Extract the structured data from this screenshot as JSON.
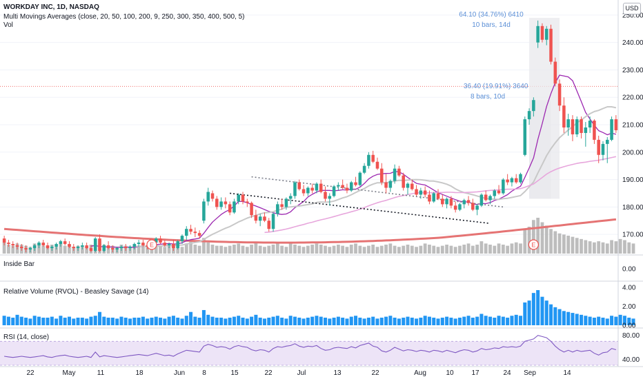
{
  "header": {
    "title": "WORKDAY INC, 1D, NASDAQ",
    "ma_legend": "Multi Movings Averages (close, 20, 50, 100, 200, 9, 250, 300, 350, 400, 500, 5)",
    "vol_legend": "Vol",
    "currency": "USD"
  },
  "panes": {
    "inside_bar": "Inside Bar",
    "rvol": "Relative Volume (RVOL) - Beasley Savage (14)",
    "rsi": "RSI (14, close)"
  },
  "annotations": {
    "range1_line1": "64.10 (34.76%) 6410",
    "range1_line2": "10 bars, 14d",
    "range2_line1": "36.40 (19.91%) 3640",
    "range2_line2": "8 bars, 10d",
    "earnings_marker": "E"
  },
  "colors": {
    "up": "#26a69a",
    "down": "#ef5350",
    "ma_gray": "#c8c8c8",
    "ma_purple": "#9c27b0",
    "ma_pink": "#e7a6dc",
    "ma_red": "#e57373",
    "volume": "#b2b2b2",
    "rvol": "#2196f3",
    "rsi": "#7e57c2"
  },
  "chart_data": {
    "type": "candlestick",
    "price_axis": {
      "ticks": [
        170,
        180,
        190,
        200,
        210,
        220,
        230,
        240,
        250
      ],
      "ylim": [
        163,
        255
      ]
    },
    "x_ticks": [
      "22",
      "May",
      "11",
      "18",
      "Jun",
      "8",
      "15",
      "22",
      "Jul",
      "13",
      "22",
      "Aug",
      "10",
      "17",
      "24",
      "Sep",
      "14"
    ],
    "candles": [
      [
        168.5,
        169.5,
        166.0,
        167.0
      ],
      [
        167.0,
        168.0,
        165.5,
        166.5
      ],
      [
        166.5,
        167.5,
        165.0,
        166.0
      ],
      [
        166.0,
        167.0,
        164.5,
        165.5
      ],
      [
        165.5,
        166.5,
        164.0,
        165.0
      ],
      [
        165.0,
        166.0,
        163.5,
        164.5
      ],
      [
        164.5,
        165.5,
        163.5,
        165.0
      ],
      [
        165.0,
        166.5,
        164.0,
        166.0
      ],
      [
        166.0,
        167.5,
        165.0,
        167.0
      ],
      [
        167.0,
        168.0,
        165.5,
        166.0
      ],
      [
        166.0,
        167.0,
        164.5,
        165.0
      ],
      [
        165.0,
        166.0,
        164.0,
        165.5
      ],
      [
        165.5,
        167.0,
        164.5,
        166.5
      ],
      [
        166.5,
        168.0,
        165.5,
        167.5
      ],
      [
        167.5,
        168.5,
        166.0,
        166.5
      ],
      [
        166.5,
        167.5,
        165.0,
        165.5
      ],
      [
        165.5,
        166.5,
        164.0,
        165.0
      ],
      [
        165.0,
        166.0,
        164.0,
        165.5
      ],
      [
        165.5,
        167.0,
        164.5,
        166.0
      ],
      [
        166.0,
        167.0,
        164.5,
        165.0
      ],
      [
        165.0,
        166.0,
        163.5,
        164.0
      ],
      [
        164.0,
        169.0,
        163.5,
        168.5
      ],
      [
        168.5,
        170.0,
        163.5,
        164.0
      ],
      [
        164.0,
        166.5,
        163.5,
        166.0
      ],
      [
        166.0,
        167.5,
        164.5,
        165.0
      ],
      [
        165.0,
        166.0,
        163.5,
        164.5
      ],
      [
        164.5,
        165.5,
        163.5,
        165.0
      ],
      [
        165.0,
        166.0,
        164.0,
        165.5
      ],
      [
        165.5,
        166.5,
        164.0,
        165.0
      ],
      [
        165.0,
        166.0,
        164.0,
        165.5
      ],
      [
        165.5,
        167.0,
        164.5,
        166.5
      ],
      [
        166.5,
        168.0,
        165.5,
        167.0
      ],
      [
        167.0,
        168.0,
        165.5,
        166.0
      ],
      [
        166.0,
        167.0,
        164.5,
        165.5
      ],
      [
        165.5,
        167.5,
        164.5,
        167.0
      ],
      [
        167.0,
        169.0,
        166.0,
        168.5
      ],
      [
        168.5,
        169.5,
        166.5,
        167.0
      ],
      [
        167.0,
        168.0,
        165.5,
        166.0
      ],
      [
        166.0,
        167.0,
        165.0,
        166.5
      ],
      [
        166.5,
        168.0,
        164.0,
        165.0
      ],
      [
        165.0,
        168.0,
        164.5,
        167.5
      ],
      [
        167.5,
        170.0,
        166.5,
        169.5
      ],
      [
        169.5,
        173.0,
        168.0,
        172.0
      ],
      [
        172.0,
        173.5,
        170.0,
        171.0
      ],
      [
        171.0,
        172.5,
        169.0,
        170.5
      ],
      [
        170.5,
        171.5,
        168.5,
        169.5
      ],
      [
        175.0,
        183.0,
        174.0,
        182.0
      ],
      [
        182.0,
        187.0,
        180.5,
        185.5
      ],
      [
        185.0,
        186.0,
        182.0,
        183.0
      ],
      [
        183.0,
        184.0,
        179.0,
        180.0
      ],
      [
        180.0,
        183.5,
        179.0,
        182.0
      ],
      [
        182.0,
        183.5,
        179.5,
        181.0
      ],
      [
        181.0,
        182.0,
        177.0,
        178.0
      ],
      [
        178.0,
        183.0,
        177.5,
        182.0
      ],
      [
        182.0,
        185.0,
        181.0,
        184.5
      ],
      [
        184.5,
        185.5,
        181.0,
        182.0
      ],
      [
        182.0,
        183.0,
        180.0,
        181.5
      ],
      [
        181.5,
        182.0,
        176.0,
        177.0
      ],
      [
        177.0,
        179.0,
        174.0,
        175.0
      ],
      [
        175.0,
        177.5,
        173.0,
        176.5
      ],
      [
        176.5,
        178.0,
        174.5,
        175.0
      ],
      [
        175.0,
        176.0,
        171.0,
        172.0
      ],
      [
        172.0,
        178.0,
        171.0,
        177.5
      ],
      [
        177.5,
        182.0,
        176.5,
        181.0
      ],
      [
        181.0,
        183.0,
        179.0,
        180.0
      ],
      [
        180.0,
        183.5,
        179.0,
        183.0
      ],
      [
        183.0,
        185.0,
        181.0,
        184.0
      ],
      [
        184.0,
        189.5,
        183.0,
        189.0
      ],
      [
        189.0,
        190.0,
        186.0,
        186.5
      ],
      [
        186.5,
        188.0,
        184.0,
        185.0
      ],
      [
        185.0,
        187.5,
        184.0,
        187.0
      ],
      [
        187.0,
        188.5,
        185.0,
        186.0
      ],
      [
        186.0,
        189.0,
        185.0,
        188.5
      ],
      [
        188.5,
        190.0,
        185.0,
        185.5
      ],
      [
        185.5,
        187.5,
        182.0,
        183.0
      ],
      [
        183.0,
        185.0,
        180.5,
        184.0
      ],
      [
        184.0,
        188.0,
        183.5,
        187.5
      ],
      [
        187.5,
        189.0,
        186.0,
        188.0
      ],
      [
        188.0,
        190.0,
        186.5,
        187.0
      ],
      [
        187.0,
        188.5,
        185.0,
        186.0
      ],
      [
        186.0,
        189.5,
        185.5,
        189.0
      ],
      [
        189.0,
        191.0,
        187.5,
        188.0
      ],
      [
        188.0,
        193.0,
        187.5,
        192.5
      ],
      [
        192.5,
        196.0,
        192.0,
        195.0
      ],
      [
        195.0,
        200.0,
        194.0,
        199.0
      ],
      [
        199.0,
        200.5,
        196.0,
        196.5
      ],
      [
        196.5,
        198.0,
        193.5,
        194.0
      ],
      [
        194.0,
        196.0,
        188.0,
        189.0
      ],
      [
        189.0,
        192.0,
        185.0,
        187.0
      ],
      [
        187.0,
        190.0,
        185.5,
        189.5
      ],
      [
        189.5,
        195.5,
        188.5,
        194.0
      ],
      [
        194.0,
        195.0,
        191.0,
        191.5
      ],
      [
        191.5,
        192.5,
        186.0,
        187.0
      ],
      [
        187.0,
        189.0,
        184.5,
        188.5
      ],
      [
        188.5,
        190.0,
        186.0,
        186.5
      ],
      [
        186.5,
        188.0,
        184.0,
        184.5
      ],
      [
        184.5,
        187.0,
        183.0,
        186.0
      ],
      [
        186.0,
        187.5,
        183.5,
        184.5
      ],
      [
        184.5,
        186.0,
        181.0,
        182.0
      ],
      [
        182.0,
        185.5,
        181.5,
        185.0
      ],
      [
        185.0,
        186.5,
        182.5,
        183.0
      ],
      [
        183.0,
        184.5,
        180.0,
        181.0
      ],
      [
        181.0,
        183.5,
        179.5,
        183.0
      ],
      [
        183.0,
        184.0,
        179.5,
        180.5
      ],
      [
        180.5,
        182.0,
        178.0,
        179.0
      ],
      [
        179.0,
        181.5,
        178.5,
        181.0
      ],
      [
        181.0,
        183.0,
        179.5,
        182.5
      ],
      [
        182.5,
        184.0,
        180.5,
        181.5
      ],
      [
        181.5,
        183.0,
        178.5,
        179.0
      ],
      [
        179.0,
        181.0,
        177.0,
        180.5
      ],
      [
        180.5,
        185.0,
        180.0,
        184.5
      ],
      [
        184.5,
        186.0,
        182.0,
        182.5
      ],
      [
        182.5,
        184.5,
        181.0,
        184.0
      ],
      [
        184.0,
        186.5,
        183.0,
        186.0
      ],
      [
        186.0,
        188.0,
        184.5,
        185.0
      ],
      [
        185.0,
        190.5,
        184.5,
        190.0
      ],
      [
        190.0,
        192.0,
        188.0,
        189.0
      ],
      [
        189.0,
        191.0,
        187.5,
        190.5
      ],
      [
        190.5,
        192.0,
        188.5,
        189.0
      ],
      [
        189.0,
        192.5,
        188.5,
        192.0
      ],
      [
        199.0,
        213.0,
        198.5,
        212.0
      ],
      [
        212.0,
        216.0,
        210.0,
        215.0
      ],
      [
        215.0,
        220.0,
        213.0,
        219.0
      ],
      [
        240.0,
        248.0,
        238.0,
        246.0
      ],
      [
        246.0,
        247.0,
        240.0,
        241.0
      ],
      [
        241.0,
        246.0,
        239.0,
        245.0
      ],
      [
        245.0,
        246.5,
        232.0,
        233.0
      ],
      [
        233.0,
        234.5,
        224.0,
        225.0
      ],
      [
        225.0,
        226.5,
        215.0,
        217.0
      ],
      [
        217.0,
        220.0,
        207.0,
        209.0
      ],
      [
        209.0,
        214.0,
        206.0,
        212.0
      ],
      [
        212.0,
        213.5,
        204.0,
        206.5
      ],
      [
        206.5,
        213.0,
        205.5,
        212.0
      ],
      [
        212.0,
        213.0,
        205.0,
        207.0
      ],
      [
        207.0,
        211.0,
        202.0,
        209.0
      ],
      [
        209.0,
        213.0,
        207.0,
        211.5
      ],
      [
        211.5,
        212.0,
        203.0,
        204.5
      ],
      [
        204.5,
        206.0,
        196.0,
        199.0
      ],
      [
        199.0,
        204.0,
        197.0,
        203.0
      ],
      [
        203.0,
        205.5,
        196.0,
        204.5
      ],
      [
        204.5,
        213.0,
        204.0,
        212.0
      ],
      [
        212.0,
        213.5,
        207.0,
        208.0
      ]
    ],
    "volume": [
      10,
      8,
      7,
      9,
      8,
      7,
      6,
      9,
      8,
      7,
      7,
      8,
      6,
      9,
      7,
      8,
      6,
      7,
      7,
      6,
      8,
      9,
      12,
      8,
      7,
      7,
      6,
      8,
      7,
      6,
      7,
      7,
      8,
      6,
      7,
      8,
      7,
      6,
      8,
      9,
      7,
      6,
      9,
      12,
      8,
      7,
      14,
      10,
      8,
      7,
      7,
      6,
      7,
      8,
      9,
      7,
      6,
      8,
      10,
      7,
      6,
      7,
      8,
      9,
      7,
      6,
      9,
      8,
      7,
      6,
      7,
      8,
      9,
      8,
      7,
      6,
      7,
      8,
      7,
      6,
      8,
      9,
      7,
      6,
      7,
      8,
      6,
      7,
      8,
      9,
      7,
      6,
      7,
      8,
      7,
      6,
      7,
      9,
      8,
      7,
      6,
      7,
      8,
      7,
      6,
      7,
      8,
      9,
      7,
      8,
      11,
      9,
      8,
      7,
      9,
      8,
      7,
      9,
      10,
      9,
      22,
      24,
      30,
      32,
      28,
      25,
      22,
      20,
      18,
      17,
      16,
      15,
      14,
      13,
      12,
      11,
      10,
      11,
      10,
      9,
      12,
      11,
      13,
      12,
      10,
      9
    ],
    "rvol": {
      "ticks": [
        0.0,
        2.0,
        4.0
      ],
      "values": [
        1.0,
        0.9,
        0.8,
        1.1,
        0.9,
        0.8,
        0.7,
        1.0,
        0.9,
        0.8,
        0.8,
        0.9,
        0.7,
        1.0,
        0.8,
        0.9,
        0.7,
        0.8,
        0.8,
        0.7,
        0.9,
        1.0,
        1.4,
        0.9,
        0.8,
        0.8,
        0.7,
        0.9,
        0.8,
        0.7,
        0.8,
        0.8,
        0.9,
        0.7,
        0.8,
        0.9,
        0.8,
        0.7,
        0.9,
        1.0,
        0.8,
        0.7,
        1.0,
        1.4,
        0.9,
        0.8,
        1.6,
        1.1,
        0.9,
        0.8,
        0.8,
        0.7,
        0.8,
        0.9,
        1.0,
        0.8,
        0.7,
        0.9,
        1.1,
        0.8,
        0.7,
        0.8,
        0.9,
        1.0,
        0.8,
        0.7,
        1.0,
        0.9,
        0.8,
        0.7,
        0.8,
        0.9,
        1.0,
        0.9,
        0.8,
        0.7,
        0.8,
        0.9,
        0.8,
        0.7,
        0.9,
        1.0,
        0.8,
        0.7,
        0.8,
        0.9,
        0.7,
        0.8,
        0.9,
        1.0,
        0.8,
        0.7,
        0.8,
        0.9,
        0.8,
        0.7,
        0.8,
        1.0,
        0.9,
        0.8,
        0.7,
        0.8,
        0.9,
        0.8,
        0.7,
        0.8,
        0.9,
        1.0,
        0.8,
        0.9,
        1.2,
        1.0,
        0.9,
        0.8,
        1.0,
        0.9,
        0.8,
        1.0,
        1.1,
        1.0,
        2.4,
        2.6,
        3.4,
        3.7,
        3.0,
        2.6,
        2.2,
        1.9,
        1.7,
        1.5,
        1.4,
        1.3,
        1.2,
        1.1,
        1.0,
        0.9,
        0.8,
        0.9,
        0.8,
        0.7,
        1.0,
        0.9,
        1.1,
        1.0,
        0.8,
        0.7
      ]
    },
    "rsi": {
      "ticks": [
        40.0,
        80.0
      ],
      "values": [
        45,
        44,
        43,
        44,
        45,
        44,
        43,
        44,
        45,
        46,
        44,
        43,
        45,
        46,
        47,
        45,
        44,
        43,
        44,
        45,
        43,
        52,
        44,
        46,
        45,
        44,
        43,
        44,
        45,
        46,
        47,
        48,
        47,
        46,
        48,
        50,
        48,
        46,
        47,
        45,
        49,
        52,
        55,
        54,
        53,
        52,
        62,
        65,
        63,
        60,
        61,
        60,
        57,
        61,
        63,
        61,
        60,
        56,
        54,
        56,
        55,
        52,
        58,
        61,
        60,
        62,
        63,
        66,
        62,
        60,
        62,
        61,
        63,
        58,
        55,
        56,
        59,
        60,
        59,
        58,
        61,
        59,
        63,
        65,
        67,
        62,
        60,
        54,
        52,
        55,
        60,
        57,
        54,
        56,
        55,
        53,
        55,
        54,
        52,
        55,
        54,
        52,
        55,
        53,
        51,
        54,
        56,
        55,
        52,
        54,
        58,
        56,
        57,
        59,
        58,
        61,
        60,
        61,
        60,
        62,
        70,
        72,
        74,
        80,
        78,
        76,
        70,
        62,
        56,
        52,
        55,
        52,
        55,
        53,
        54,
        55,
        50,
        47,
        51,
        52,
        58,
        56
      ]
    }
  }
}
